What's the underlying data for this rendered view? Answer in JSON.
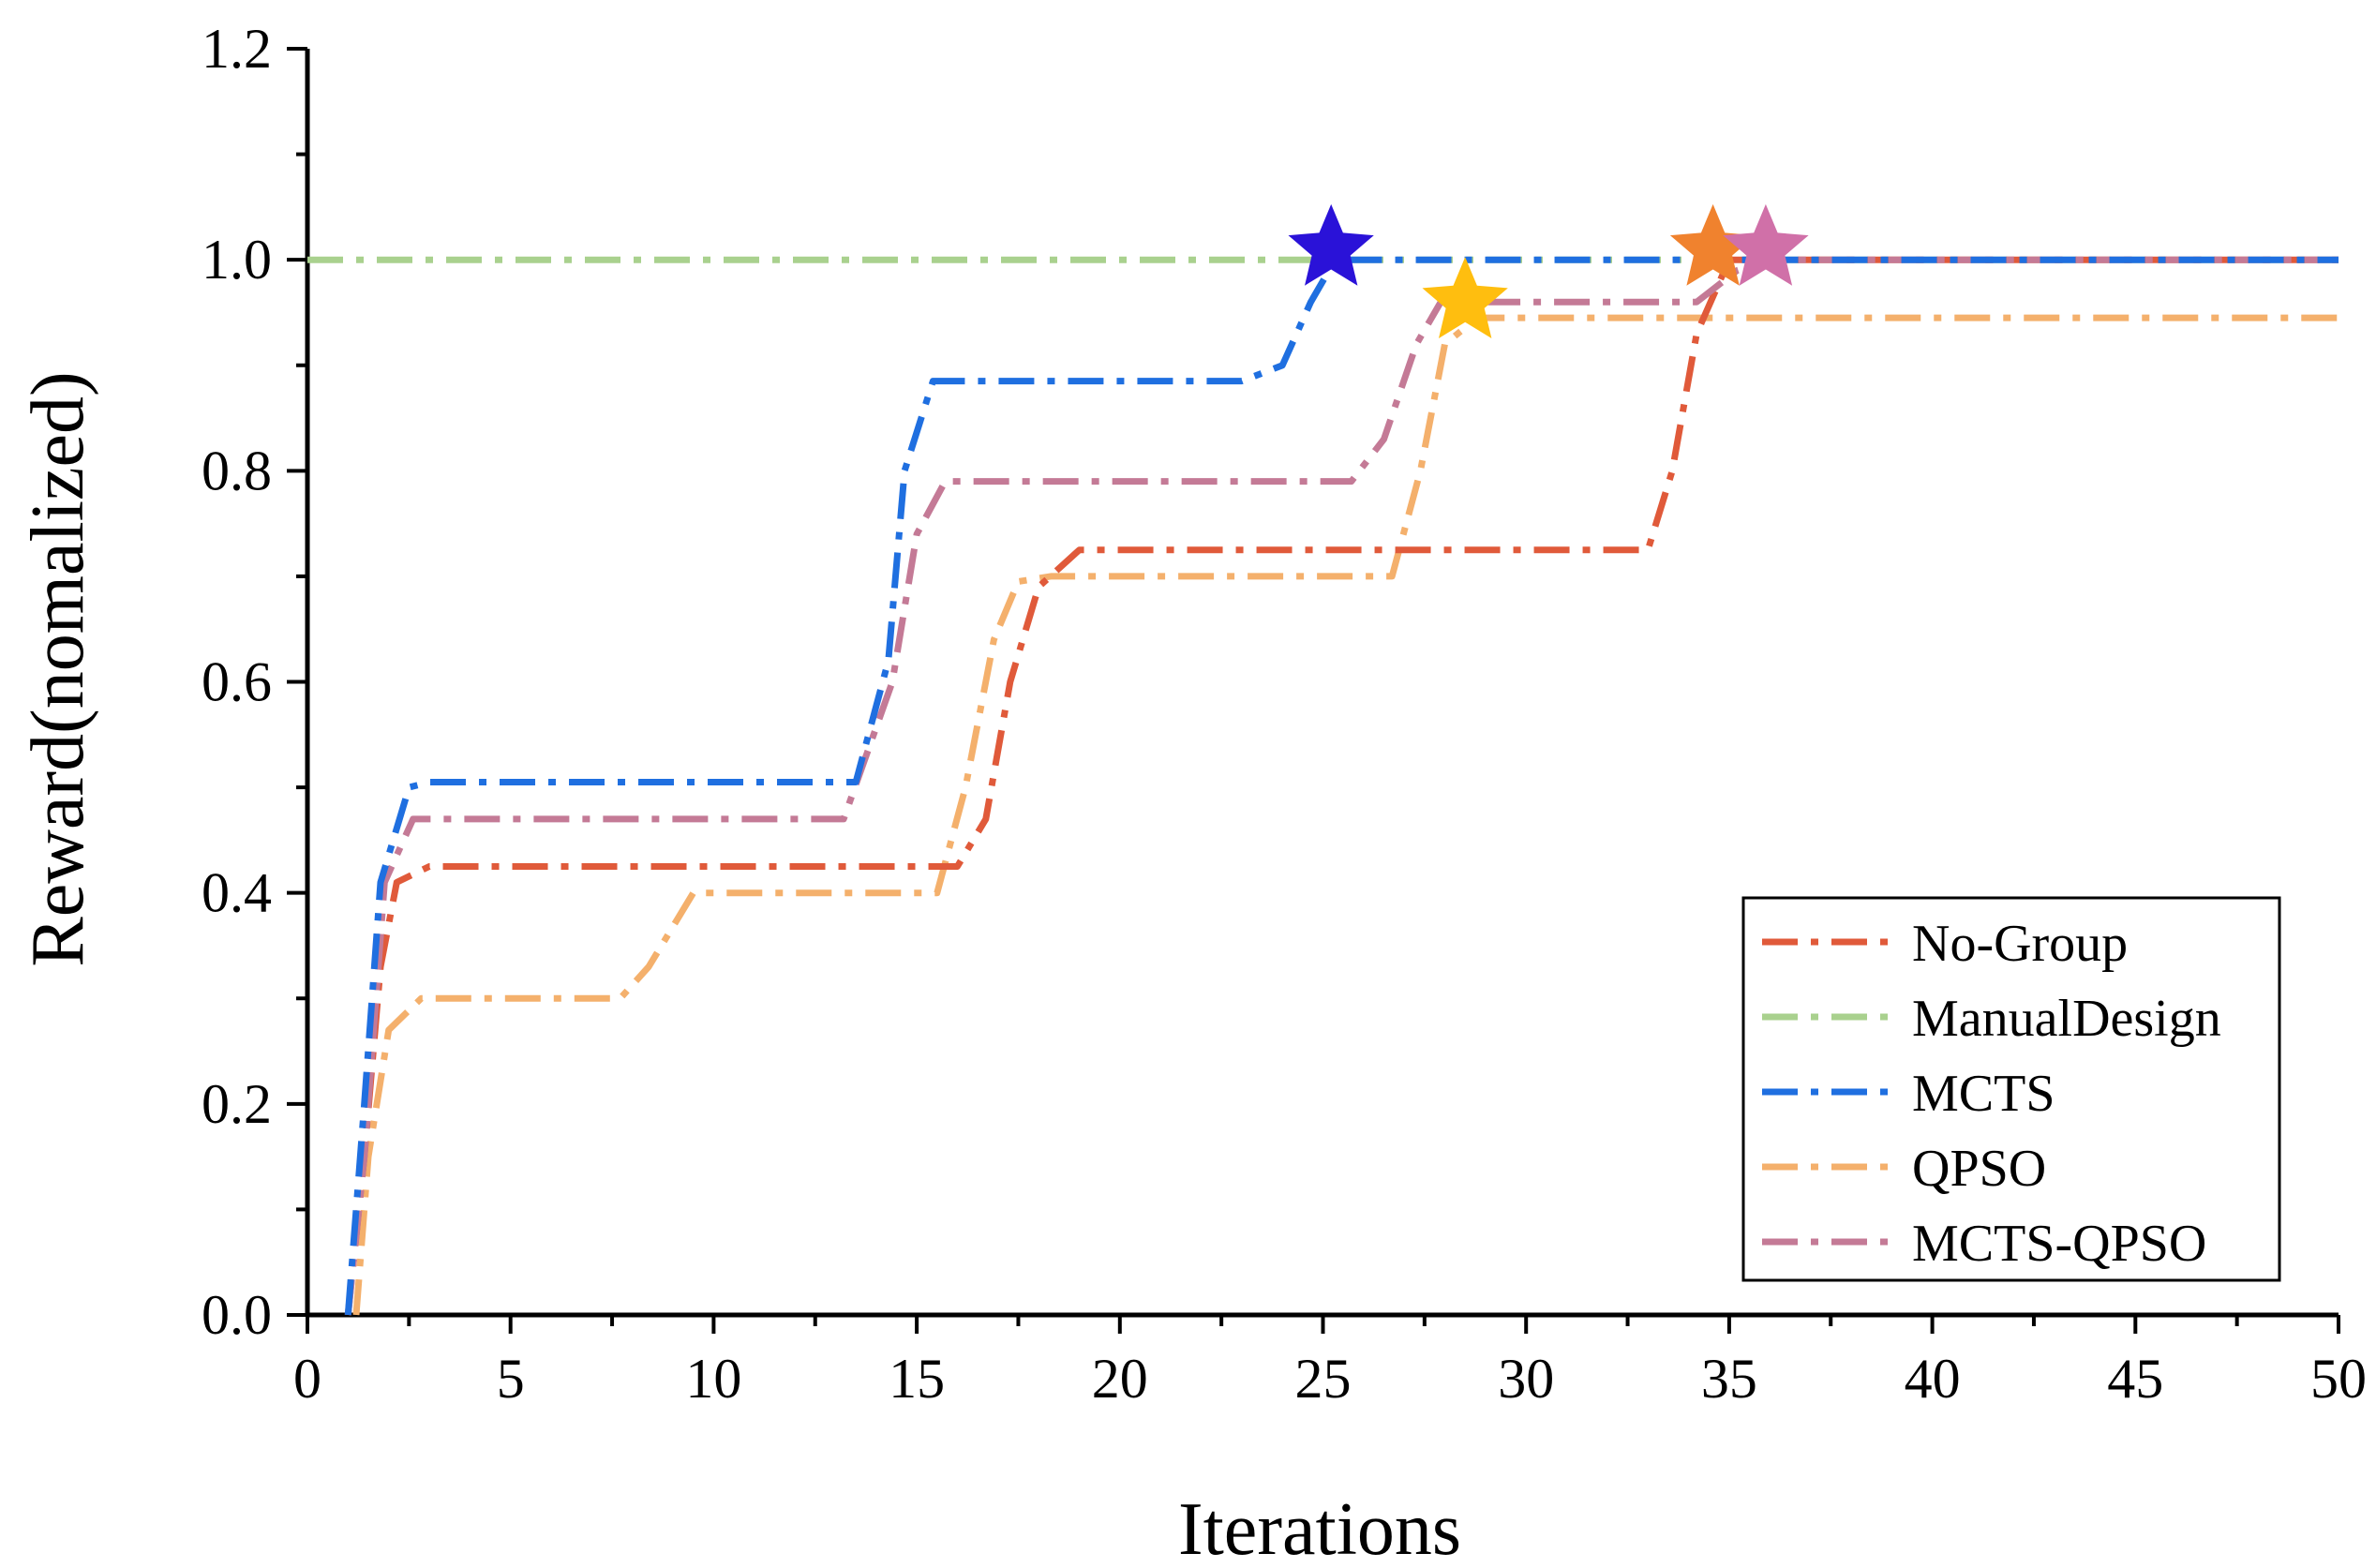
{
  "chart_data": {
    "type": "line",
    "title": "",
    "xlabel": "Iterations",
    "ylabel": "Reward(nomalized)",
    "xlim": [
      0,
      50
    ],
    "ylim": [
      0,
      1.2
    ],
    "xticks": [
      "0",
      "5",
      "10",
      "15",
      "20",
      "25",
      "30",
      "35",
      "40",
      "45",
      "50"
    ],
    "yticks": [
      "0.0",
      "0.2",
      "0.4",
      "0.6",
      "0.8",
      "1.0",
      "1.2"
    ],
    "grid": false,
    "legend_position": "bottom-right",
    "series": [
      {
        "name": "No-Group",
        "color": "#e05a3a",
        "points": [
          [
            1,
            0
          ],
          [
            1.4,
            0.15
          ],
          [
            1.8,
            0.33
          ],
          [
            2.2,
            0.41
          ],
          [
            3,
            0.425
          ],
          [
            16,
            0.425
          ],
          [
            16.7,
            0.47
          ],
          [
            17.3,
            0.6
          ],
          [
            18,
            0.69
          ],
          [
            19,
            0.725
          ],
          [
            33,
            0.725
          ],
          [
            33.6,
            0.8
          ],
          [
            34.2,
            0.93
          ],
          [
            35,
            1.0
          ],
          [
            50,
            1.0
          ]
        ],
        "star": {
          "x": 34.6,
          "y": 1.01,
          "color": "#f0822e"
        }
      },
      {
        "name": "ManualDesign",
        "color": "#a9d18e",
        "points": [
          [
            0,
            1.0
          ],
          [
            50,
            1.0
          ]
        ]
      },
      {
        "name": "MCTS",
        "color": "#1f6fe0",
        "points": [
          [
            1,
            0
          ],
          [
            1.4,
            0.2
          ],
          [
            1.8,
            0.41
          ],
          [
            2.5,
            0.5
          ],
          [
            3,
            0.505
          ],
          [
            13.5,
            0.505
          ],
          [
            14.3,
            0.62
          ],
          [
            14.7,
            0.8
          ],
          [
            15.4,
            0.885
          ],
          [
            23,
            0.885
          ],
          [
            24,
            0.9
          ],
          [
            24.7,
            0.96
          ],
          [
            25.3,
            1.0
          ],
          [
            50,
            1.0
          ]
        ],
        "star": {
          "x": 25.2,
          "y": 1.01,
          "color": "#2a12d8"
        }
      },
      {
        "name": "QPSO",
        "color": "#f4b06c",
        "points": [
          [
            1.2,
            0
          ],
          [
            1.5,
            0.15
          ],
          [
            2,
            0.27
          ],
          [
            2.8,
            0.3
          ],
          [
            7.7,
            0.3
          ],
          [
            8.4,
            0.33
          ],
          [
            9.5,
            0.4
          ],
          [
            15.5,
            0.4
          ],
          [
            16.2,
            0.5
          ],
          [
            16.9,
            0.64
          ],
          [
            17.5,
            0.695
          ],
          [
            18.3,
            0.7
          ],
          [
            26.7,
            0.7
          ],
          [
            27.4,
            0.8
          ],
          [
            28,
            0.92
          ],
          [
            28.8,
            0.945
          ],
          [
            50,
            0.945
          ]
        ],
        "star": {
          "x": 28.5,
          "y": 0.96,
          "color": "#ffbe0f"
        }
      },
      {
        "name": "MCTS-QPSO",
        "color": "#c47a96",
        "points": [
          [
            1,
            0
          ],
          [
            1.4,
            0.15
          ],
          [
            1.9,
            0.41
          ],
          [
            2.6,
            0.47
          ],
          [
            3.4,
            0.47
          ],
          [
            13.2,
            0.47
          ],
          [
            14.4,
            0.6
          ],
          [
            15,
            0.74
          ],
          [
            15.7,
            0.79
          ],
          [
            25.7,
            0.79
          ],
          [
            26.5,
            0.83
          ],
          [
            27.3,
            0.92
          ],
          [
            27.9,
            0.96
          ],
          [
            34.2,
            0.96
          ],
          [
            35.2,
            0.99
          ],
          [
            36,
            1.0
          ],
          [
            50,
            1.0
          ]
        ],
        "star": {
          "x": 35.9,
          "y": 1.01,
          "color": "#d070a8"
        }
      }
    ]
  }
}
